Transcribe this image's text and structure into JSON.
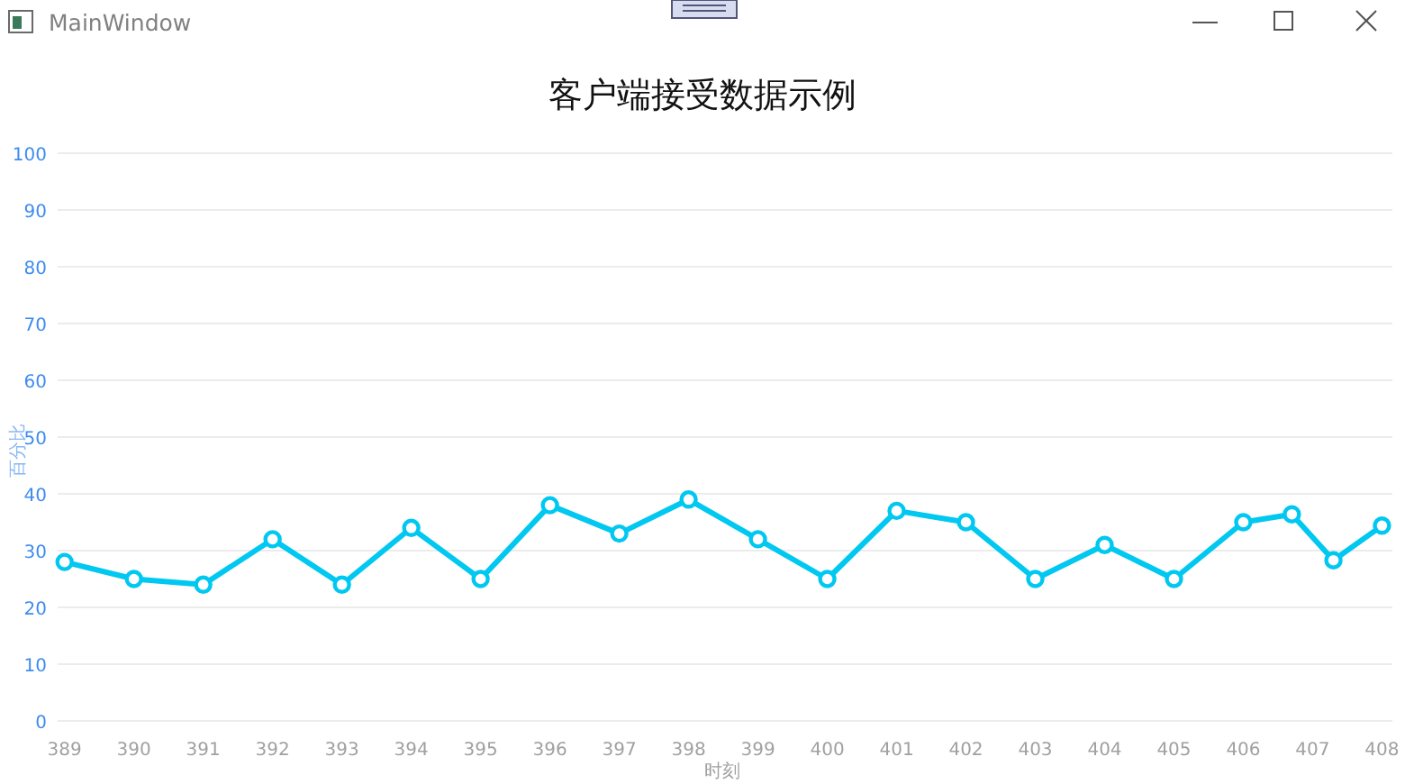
{
  "chart_data": {
    "type": "line",
    "title": "客户端接受数据示例",
    "xlabel": "时刻",
    "ylabel": "百分比",
    "annotations": [
      "MainWindow"
    ],
    "x": [
      389,
      390,
      391,
      392,
      393,
      394,
      395,
      396,
      397,
      398,
      399,
      400,
      401,
      402,
      403,
      404,
      405,
      406,
      406.7,
      407.3,
      408
    ],
    "series": [
      {
        "color": "#00c8f0",
        "values": [
          28,
          25,
          24,
          32,
          24,
          34,
          25,
          38,
          33,
          39,
          32,
          25,
          37,
          35,
          25,
          31,
          25,
          35,
          36.4,
          28.3,
          34.4
        ]
      }
    ],
    "xlim": [
      388.9,
      408.15
    ],
    "xticks": [
      389,
      390,
      391,
      392,
      393,
      394,
      395,
      396,
      397,
      398,
      399,
      400,
      401,
      402,
      403,
      404,
      405,
      406,
      407,
      408
    ],
    "ylim": [
      0,
      100
    ],
    "yticks": [
      0,
      10,
      20,
      30,
      40,
      50,
      60,
      70,
      80,
      90,
      100
    ],
    "grid": "y",
    "marker": "circle",
    "line_style": "solid"
  }
}
